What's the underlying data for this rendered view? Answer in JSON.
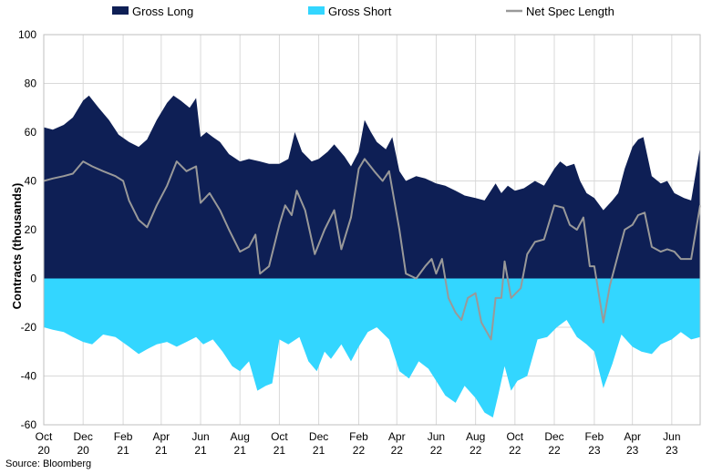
{
  "source": "Source: Bloomberg",
  "chart_data": {
    "type": "area",
    "ylabel": "Contracts (thousands)",
    "ylim": [
      -60,
      100
    ],
    "yticks": [
      100,
      80,
      60,
      40,
      20,
      0,
      -20,
      -40,
      -60
    ],
    "legend_position": "top",
    "grid": true,
    "x_start": "2020-10-01",
    "x_end": "2023-07-15",
    "xtick_dates": [
      "2020-10-01",
      "2020-12-01",
      "2021-02-01",
      "2021-04-01",
      "2021-06-01",
      "2021-08-01",
      "2021-10-01",
      "2021-12-01",
      "2022-02-01",
      "2022-04-01",
      "2022-06-01",
      "2022-08-01",
      "2022-10-01",
      "2022-12-01",
      "2023-02-01",
      "2023-04-01",
      "2023-06-01"
    ],
    "xtick_labels": [
      [
        "Oct",
        "20"
      ],
      [
        "Dec",
        "20"
      ],
      [
        "Feb",
        "21"
      ],
      [
        "Apr",
        "21"
      ],
      [
        "Jun",
        "21"
      ],
      [
        "Aug",
        "21"
      ],
      [
        "Oct",
        "21"
      ],
      [
        "Dec",
        "21"
      ],
      [
        "Feb",
        "22"
      ],
      [
        "Apr",
        "22"
      ],
      [
        "Jun",
        "22"
      ],
      [
        "Aug",
        "22"
      ],
      [
        "Oct",
        "22"
      ],
      [
        "Dec",
        "22"
      ],
      [
        "Feb",
        "23"
      ],
      [
        "Apr",
        "23"
      ],
      [
        "Jun",
        "23"
      ]
    ],
    "series": [
      {
        "name": "Gross Long",
        "style": "area",
        "color": "#0e1f55",
        "points": [
          [
            "2020-10-01",
            62
          ],
          [
            "2020-10-15",
            61
          ],
          [
            "2020-11-01",
            63
          ],
          [
            "2020-11-15",
            66
          ],
          [
            "2020-12-01",
            73
          ],
          [
            "2020-12-10",
            75
          ],
          [
            "2020-12-25",
            70
          ],
          [
            "2021-01-10",
            65
          ],
          [
            "2021-01-25",
            59
          ],
          [
            "2021-02-10",
            56
          ],
          [
            "2021-02-25",
            54
          ],
          [
            "2021-03-10",
            57
          ],
          [
            "2021-03-25",
            65
          ],
          [
            "2021-04-10",
            72
          ],
          [
            "2021-04-20",
            75
          ],
          [
            "2021-05-01",
            73
          ],
          [
            "2021-05-15",
            70
          ],
          [
            "2021-05-25",
            74
          ],
          [
            "2021-06-01",
            58
          ],
          [
            "2021-06-10",
            60
          ],
          [
            "2021-06-20",
            58
          ],
          [
            "2021-07-01",
            56
          ],
          [
            "2021-07-15",
            51
          ],
          [
            "2021-08-01",
            48
          ],
          [
            "2021-08-15",
            49
          ],
          [
            "2021-09-01",
            48
          ],
          [
            "2021-09-15",
            47
          ],
          [
            "2021-10-01",
            47
          ],
          [
            "2021-10-15",
            49
          ],
          [
            "2021-10-25",
            60
          ],
          [
            "2021-11-05",
            52
          ],
          [
            "2021-11-20",
            48
          ],
          [
            "2021-12-01",
            49
          ],
          [
            "2021-12-15",
            52
          ],
          [
            "2021-12-25",
            55
          ],
          [
            "2022-01-10",
            50
          ],
          [
            "2022-01-20",
            46
          ],
          [
            "2022-02-01",
            52
          ],
          [
            "2022-02-10",
            65
          ],
          [
            "2022-02-20",
            60
          ],
          [
            "2022-03-01",
            56
          ],
          [
            "2022-03-15",
            53
          ],
          [
            "2022-03-25",
            58
          ],
          [
            "2022-04-05",
            44
          ],
          [
            "2022-04-15",
            40
          ],
          [
            "2022-05-01",
            42
          ],
          [
            "2022-05-15",
            41
          ],
          [
            "2022-06-01",
            39
          ],
          [
            "2022-06-15",
            38
          ],
          [
            "2022-07-01",
            36
          ],
          [
            "2022-07-15",
            34
          ],
          [
            "2022-08-01",
            33
          ],
          [
            "2022-08-15",
            32
          ],
          [
            "2022-09-01",
            39
          ],
          [
            "2022-09-10",
            35
          ],
          [
            "2022-09-20",
            38
          ],
          [
            "2022-10-01",
            36
          ],
          [
            "2022-10-15",
            37
          ],
          [
            "2022-11-01",
            40
          ],
          [
            "2022-11-15",
            38
          ],
          [
            "2022-12-01",
            45
          ],
          [
            "2022-12-10",
            48
          ],
          [
            "2022-12-20",
            46
          ],
          [
            "2023-01-01",
            47
          ],
          [
            "2023-01-10",
            40
          ],
          [
            "2023-01-20",
            35
          ],
          [
            "2023-02-01",
            33
          ],
          [
            "2023-02-15",
            28
          ],
          [
            "2023-03-01",
            32
          ],
          [
            "2023-03-10",
            35
          ],
          [
            "2023-03-20",
            45
          ],
          [
            "2023-04-01",
            54
          ],
          [
            "2023-04-10",
            57
          ],
          [
            "2023-04-18",
            58
          ],
          [
            "2023-05-01",
            42
          ],
          [
            "2023-05-15",
            39
          ],
          [
            "2023-05-25",
            40
          ],
          [
            "2023-06-05",
            35
          ],
          [
            "2023-06-20",
            33
          ],
          [
            "2023-07-01",
            32
          ],
          [
            "2023-07-15",
            54
          ]
        ]
      },
      {
        "name": "Gross Short",
        "style": "area",
        "color": "#33d6ff",
        "points": [
          [
            "2020-10-01",
            -20
          ],
          [
            "2020-10-15",
            -21
          ],
          [
            "2020-11-01",
            -22
          ],
          [
            "2020-11-15",
            -24
          ],
          [
            "2020-12-01",
            -26
          ],
          [
            "2020-12-15",
            -27
          ],
          [
            "2021-01-01",
            -23
          ],
          [
            "2021-01-20",
            -24
          ],
          [
            "2021-02-10",
            -28
          ],
          [
            "2021-02-25",
            -31
          ],
          [
            "2021-03-10",
            -29
          ],
          [
            "2021-03-25",
            -27
          ],
          [
            "2021-04-10",
            -26
          ],
          [
            "2021-04-25",
            -28
          ],
          [
            "2021-05-10",
            -26
          ],
          [
            "2021-05-25",
            -24
          ],
          [
            "2021-06-05",
            -27
          ],
          [
            "2021-06-20",
            -25
          ],
          [
            "2021-07-05",
            -30
          ],
          [
            "2021-07-20",
            -36
          ],
          [
            "2021-08-01",
            -38
          ],
          [
            "2021-08-15",
            -34
          ],
          [
            "2021-08-28",
            -46
          ],
          [
            "2021-09-10",
            -44
          ],
          [
            "2021-09-20",
            -43
          ],
          [
            "2021-10-01",
            -25
          ],
          [
            "2021-10-15",
            -27
          ],
          [
            "2021-11-01",
            -24
          ],
          [
            "2021-11-15",
            -34
          ],
          [
            "2021-11-28",
            -38
          ],
          [
            "2021-12-10",
            -30
          ],
          [
            "2021-12-20",
            -33
          ],
          [
            "2022-01-05",
            -27
          ],
          [
            "2022-01-20",
            -34
          ],
          [
            "2022-02-01",
            -28
          ],
          [
            "2022-02-15",
            -22
          ],
          [
            "2022-03-01",
            -20
          ],
          [
            "2022-03-20",
            -25
          ],
          [
            "2022-04-05",
            -38
          ],
          [
            "2022-04-20",
            -41
          ],
          [
            "2022-05-05",
            -34
          ],
          [
            "2022-05-20",
            -37
          ],
          [
            "2022-06-01",
            -42
          ],
          [
            "2022-06-15",
            -48
          ],
          [
            "2022-07-01",
            -51
          ],
          [
            "2022-07-15",
            -44
          ],
          [
            "2022-08-01",
            -49
          ],
          [
            "2022-08-15",
            -55
          ],
          [
            "2022-08-28",
            -57
          ],
          [
            "2022-09-05",
            -48
          ],
          [
            "2022-09-15",
            -36
          ],
          [
            "2022-09-25",
            -46
          ],
          [
            "2022-10-05",
            -42
          ],
          [
            "2022-10-20",
            -40
          ],
          [
            "2022-11-05",
            -25
          ],
          [
            "2022-11-20",
            -24
          ],
          [
            "2022-12-05",
            -20
          ],
          [
            "2022-12-20",
            -17
          ],
          [
            "2023-01-05",
            -24
          ],
          [
            "2023-01-20",
            -27
          ],
          [
            "2023-02-01",
            -30
          ],
          [
            "2023-02-15",
            -45
          ],
          [
            "2023-03-01",
            -35
          ],
          [
            "2023-03-15",
            -23
          ],
          [
            "2023-04-01",
            -28
          ],
          [
            "2023-04-15",
            -30
          ],
          [
            "2023-05-01",
            -31
          ],
          [
            "2023-05-15",
            -27
          ],
          [
            "2023-06-01",
            -25
          ],
          [
            "2023-06-15",
            -22
          ],
          [
            "2023-07-01",
            -25
          ],
          [
            "2023-07-15",
            -24
          ]
        ]
      },
      {
        "name": "Net Spec Length",
        "style": "line",
        "color": "#999999",
        "points": [
          [
            "2020-10-01",
            40
          ],
          [
            "2020-10-15",
            41
          ],
          [
            "2020-11-01",
            42
          ],
          [
            "2020-11-15",
            43
          ],
          [
            "2020-12-01",
            48
          ],
          [
            "2020-12-15",
            46
          ],
          [
            "2021-01-01",
            44
          ],
          [
            "2021-01-20",
            42
          ],
          [
            "2021-02-01",
            40
          ],
          [
            "2021-02-10",
            32
          ],
          [
            "2021-02-25",
            24
          ],
          [
            "2021-03-10",
            21
          ],
          [
            "2021-03-25",
            30
          ],
          [
            "2021-04-10",
            38
          ],
          [
            "2021-04-25",
            48
          ],
          [
            "2021-05-10",
            44
          ],
          [
            "2021-05-25",
            46
          ],
          [
            "2021-06-01",
            31
          ],
          [
            "2021-06-15",
            35
          ],
          [
            "2021-07-01",
            28
          ],
          [
            "2021-07-15",
            20
          ],
          [
            "2021-08-01",
            11
          ],
          [
            "2021-08-15",
            13
          ],
          [
            "2021-08-25",
            18
          ],
          [
            "2021-09-01",
            2
          ],
          [
            "2021-09-15",
            5
          ],
          [
            "2021-10-01",
            22
          ],
          [
            "2021-10-10",
            30
          ],
          [
            "2021-10-20",
            26
          ],
          [
            "2021-10-28",
            36
          ],
          [
            "2021-11-10",
            28
          ],
          [
            "2021-11-25",
            10
          ],
          [
            "2021-12-10",
            20
          ],
          [
            "2021-12-25",
            28
          ],
          [
            "2022-01-05",
            12
          ],
          [
            "2022-01-20",
            25
          ],
          [
            "2022-02-01",
            45
          ],
          [
            "2022-02-10",
            49
          ],
          [
            "2022-02-25",
            44
          ],
          [
            "2022-03-10",
            40
          ],
          [
            "2022-03-20",
            44
          ],
          [
            "2022-04-05",
            20
          ],
          [
            "2022-04-15",
            2
          ],
          [
            "2022-05-01",
            0
          ],
          [
            "2022-05-15",
            5
          ],
          [
            "2022-05-25",
            8
          ],
          [
            "2022-06-01",
            2
          ],
          [
            "2022-06-10",
            8
          ],
          [
            "2022-06-20",
            -8
          ],
          [
            "2022-07-01",
            -14
          ],
          [
            "2022-07-10",
            -17
          ],
          [
            "2022-07-20",
            -8
          ],
          [
            "2022-08-01",
            -6
          ],
          [
            "2022-08-10",
            -18
          ],
          [
            "2022-08-25",
            -25
          ],
          [
            "2022-09-01",
            -8
          ],
          [
            "2022-09-10",
            -8
          ],
          [
            "2022-09-15",
            7
          ],
          [
            "2022-09-25",
            -8
          ],
          [
            "2022-10-10",
            -4
          ],
          [
            "2022-10-20",
            10
          ],
          [
            "2022-11-01",
            15
          ],
          [
            "2022-11-15",
            16
          ],
          [
            "2022-12-01",
            30
          ],
          [
            "2022-12-15",
            29
          ],
          [
            "2022-12-25",
            22
          ],
          [
            "2023-01-05",
            20
          ],
          [
            "2023-01-15",
            25
          ],
          [
            "2023-01-25",
            5
          ],
          [
            "2023-02-01",
            5
          ],
          [
            "2023-02-15",
            -18
          ],
          [
            "2023-02-25",
            -3
          ],
          [
            "2023-03-10",
            10
          ],
          [
            "2023-03-20",
            20
          ],
          [
            "2023-04-01",
            22
          ],
          [
            "2023-04-10",
            26
          ],
          [
            "2023-04-20",
            27
          ],
          [
            "2023-05-01",
            13
          ],
          [
            "2023-05-15",
            11
          ],
          [
            "2023-05-25",
            12
          ],
          [
            "2023-06-05",
            11
          ],
          [
            "2023-06-15",
            8
          ],
          [
            "2023-07-01",
            8
          ],
          [
            "2023-07-15",
            30
          ]
        ]
      }
    ]
  }
}
